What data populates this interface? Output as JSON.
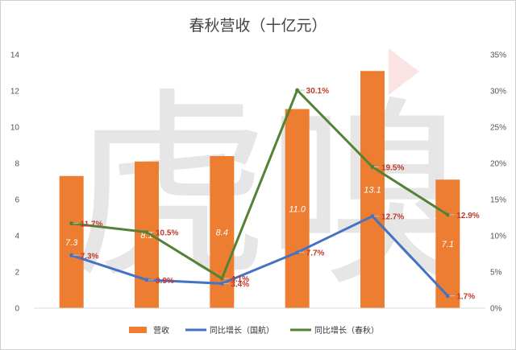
{
  "chart_data": {
    "type": "bar",
    "title": "春秋营收（十亿元）",
    "watermark": "虎嗅",
    "ylim_left": [
      0,
      14
    ],
    "left_ticks": [
      "0",
      "2",
      "4",
      "6",
      "8",
      "10",
      "12",
      "14"
    ],
    "ylim_right": [
      0,
      35
    ],
    "right_ticks": [
      "0%",
      "5%",
      "10%",
      "15%",
      "20%",
      "25%",
      "30%",
      "35%"
    ],
    "legend_placement": "bottom",
    "bars": {
      "name": "营收",
      "color": "#ED7D31",
      "values": [
        7.3,
        8.1,
        8.4,
        11.0,
        13.1,
        7.1
      ],
      "labels": [
        "7.3",
        "8.1",
        "8.4",
        "11.0",
        "13.1",
        "7.1"
      ]
    },
    "lines": [
      {
        "name": "同比增长（国航）",
        "color": "#4472C4",
        "values": [
          7.3,
          3.9,
          3.4,
          7.7,
          12.7,
          1.7
        ],
        "labels": [
          "7.3%",
          "3.9%",
          "3.4%",
          "7.7%",
          "12.7%",
          "1.7%"
        ]
      },
      {
        "name": "同比增长（春秋）",
        "color": "#548235",
        "values": [
          11.7,
          10.5,
          4.1,
          30.1,
          19.5,
          12.9
        ],
        "labels": [
          "11.7%",
          "10.5%",
          "4.1%",
          "30.1%",
          "19.5%",
          "12.9%"
        ]
      }
    ]
  }
}
